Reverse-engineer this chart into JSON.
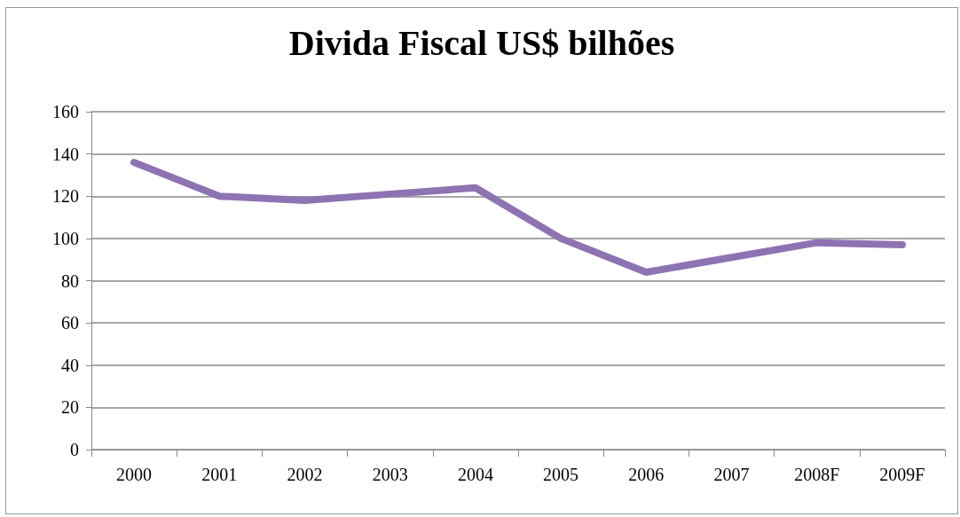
{
  "chart_data": {
    "type": "line",
    "title": "Divida Fiscal US$ bilhões",
    "categories": [
      "2000",
      "2001",
      "2002",
      "2003",
      "2004",
      "2005",
      "2006",
      "2007",
      "2008F",
      "2009F"
    ],
    "series": [
      {
        "color": "#8e73b3",
        "values": [
          136,
          120,
          118,
          121,
          124,
          100,
          84,
          91,
          98,
          97
        ]
      }
    ],
    "ylim": [
      0,
      160
    ],
    "yticks": [
      0,
      20,
      40,
      60,
      80,
      100,
      120,
      140,
      160
    ],
    "grid": "y",
    "marker": "none",
    "line_style": "solid"
  }
}
